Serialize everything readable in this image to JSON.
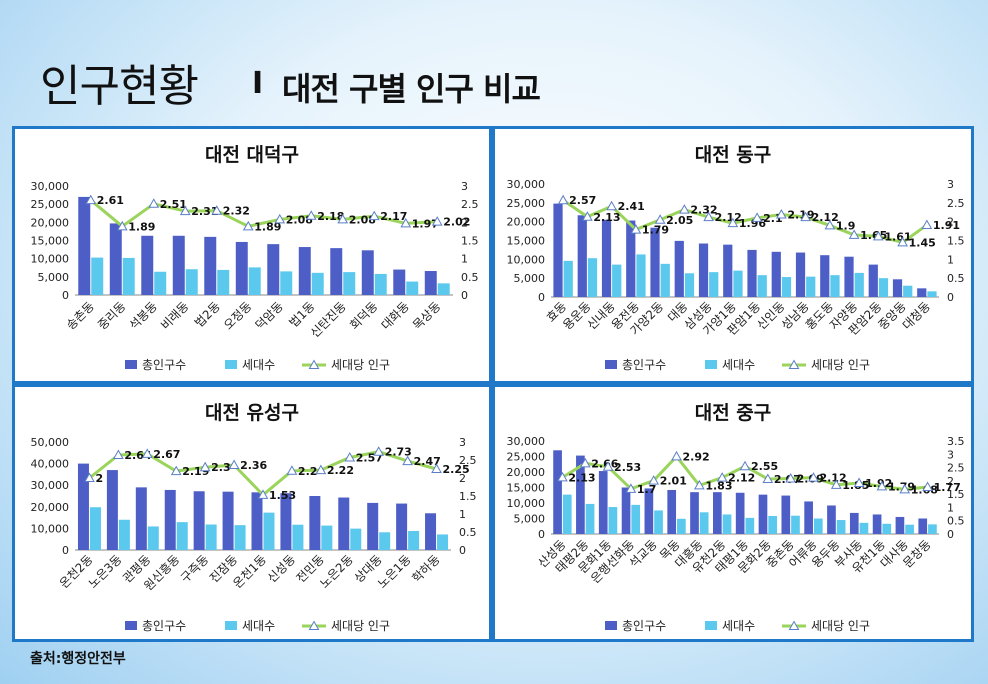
{
  "page": {
    "title": "인구현황",
    "separator": "I",
    "subtitle": "대전 구별 인구 비교",
    "source": "출처:행정안전부"
  },
  "colors": {
    "total": "#4d5ec7",
    "households": "#5bc8ee",
    "ratio_line": "#9ad45b",
    "ratio_marker": "#5b7fc8",
    "border": "#1f78c8"
  },
  "legend": {
    "total": "총인구수",
    "households": "세대수",
    "ratio": "세대당 인구"
  },
  "chart_data": [
    {
      "type": "bar",
      "title": "대전 대덕구",
      "categories": [
        "송촌동",
        "중리동",
        "석봉동",
        "비래동",
        "법2동",
        "오정동",
        "덕암동",
        "법1동",
        "신탄진동",
        "회덕동",
        "대화동",
        "목상동"
      ],
      "series": [
        {
          "name": "총인구수",
          "values": [
            27000,
            19700,
            16300,
            16300,
            16000,
            14600,
            14000,
            13200,
            12900,
            12300,
            7000,
            6600
          ]
        },
        {
          "name": "세대수",
          "values": [
            10300,
            10200,
            6400,
            7100,
            6900,
            7600,
            6500,
            6100,
            6300,
            5800,
            3700,
            3200
          ]
        },
        {
          "name": "세대당 인구",
          "axis": "right",
          "values": [
            2.61,
            1.89,
            2.51,
            2.31,
            2.32,
            1.89,
            2.08,
            2.18,
            2.08,
            2.17,
            1.97,
            2.02
          ]
        }
      ],
      "ylim": [
        0,
        30000
      ],
      "yticks": [
        "0",
        "5,000",
        "10,000",
        "15,000",
        "20,000",
        "25,000",
        "30,000"
      ],
      "y2lim": [
        0,
        3
      ],
      "y2ticks": [
        "0",
        "0.5",
        "1",
        "1.5",
        "2",
        "2.5",
        "3"
      ],
      "labels": [
        "2.61",
        "1.89",
        "2.51",
        "2.31",
        "2.32",
        "1.89",
        "2.08",
        "2.18",
        "2.08",
        "2.17",
        "1.97",
        "2.02"
      ]
    },
    {
      "type": "bar",
      "title": "대전 동구",
      "categories": [
        "효동",
        "용운동",
        "신내동",
        "용전동",
        "가양2동",
        "대동",
        "삼성동",
        "가양1동",
        "판암1동",
        "신인동",
        "성남동",
        "홍도동",
        "자양동",
        "판암2동",
        "중앙동",
        "대청동"
      ],
      "series": [
        {
          "name": "총인구수",
          "values": [
            24800,
            21700,
            20500,
            20300,
            18400,
            14900,
            14200,
            13900,
            12500,
            12000,
            11800,
            11100,
            10700,
            8600,
            4700,
            2300
          ]
        },
        {
          "name": "세대수",
          "values": [
            9600,
            10300,
            8600,
            11300,
            8800,
            6300,
            6600,
            7000,
            5800,
            5300,
            5400,
            5800,
            6400,
            5000,
            3000,
            1500
          ]
        },
        {
          "name": "세대당 인구",
          "axis": "right",
          "values": [
            2.57,
            2.13,
            2.41,
            1.79,
            2.05,
            2.32,
            2.12,
            1.96,
            2.1,
            2.19,
            2.12,
            1.9,
            1.65,
            1.61,
            1.45,
            1.91
          ]
        }
      ],
      "ylim": [
        0,
        30000
      ],
      "yticks": [
        "0",
        "5,000",
        "10,000",
        "15,000",
        "20,000",
        "25,000",
        "30,000"
      ],
      "y2lim": [
        0,
        3
      ],
      "y2ticks": [
        "0",
        "0.5",
        "1",
        "1.5",
        "2",
        "2.5",
        "3"
      ],
      "labels": [
        "2.57",
        "2.13",
        "2.41",
        "1.79",
        "2.05",
        "2.32",
        "2.12",
        "1.96",
        "2.1",
        "2.19",
        "2.12",
        "1.9",
        "1.65",
        "1.61",
        "1.45",
        "1.91"
      ]
    },
    {
      "type": "bar",
      "title": "대전 유성구",
      "categories": [
        "온천2동",
        "노은3동",
        "관평동",
        "원신흥동",
        "구즉동",
        "진잠동",
        "온천1동",
        "신성동",
        "전민동",
        "노은2동",
        "상대동",
        "노은1동",
        "학하동"
      ],
      "series": [
        {
          "name": "총인구수",
          "values": [
            40000,
            37000,
            29000,
            27800,
            27200,
            27000,
            26700,
            26300,
            25000,
            24300,
            21800,
            21500,
            17000
          ]
        },
        {
          "name": "세대수",
          "values": [
            19800,
            14000,
            10900,
            12900,
            11800,
            11500,
            17300,
            11700,
            11300,
            9900,
            8200,
            8800,
            7200
          ]
        },
        {
          "name": "세대당 인구",
          "axis": "right",
          "values": [
            2.0,
            2.64,
            2.67,
            2.19,
            2.3,
            2.36,
            1.53,
            2.2,
            2.22,
            2.57,
            2.73,
            2.47,
            2.25
          ]
        }
      ],
      "ylim": [
        0,
        50000
      ],
      "yticks": [
        "0",
        "10,000",
        "20,000",
        "30,000",
        "40,000",
        "50,000"
      ],
      "y2lim": [
        0,
        3
      ],
      "y2ticks": [
        "0",
        "0.5",
        "1",
        "1.5",
        "2",
        "2.5",
        "3"
      ],
      "labels": [
        "2",
        "2.64",
        "2.67",
        "2.19",
        "2.3",
        "2.36",
        "1.53",
        "2.2",
        "2.22",
        "2.57",
        "2.73",
        "2.47",
        "2.25"
      ]
    },
    {
      "type": "bar",
      "title": "대전 중구",
      "categories": [
        "산성동",
        "태평2동",
        "문화1동",
        "은행선화동",
        "석교동",
        "목동",
        "대흥동",
        "유천2동",
        "태평1동",
        "문화2동",
        "중촌동",
        "어류동",
        "용두동",
        "부사동",
        "유천1동",
        "대사동",
        "문창동"
      ],
      "series": [
        {
          "name": "총인구수",
          "values": [
            27000,
            25300,
            20300,
            15000,
            14700,
            14200,
            13500,
            13500,
            13300,
            12700,
            12400,
            10500,
            9200,
            6800,
            6300,
            5500,
            5000
          ]
        },
        {
          "name": "세대수",
          "values": [
            12700,
            9700,
            8700,
            9400,
            7600,
            4900,
            7000,
            6300,
            5200,
            5800,
            5900,
            5000,
            4500,
            3600,
            3300,
            3000,
            3100
          ]
        },
        {
          "name": "세대당 인구",
          "axis": "right",
          "values": [
            2.13,
            2.66,
            2.53,
            1.7,
            2.01,
            2.92,
            1.83,
            2.12,
            2.55,
            2.07,
            2.09,
            2.12,
            1.85,
            1.92,
            1.79,
            1.68,
            1.77
          ]
        }
      ],
      "ylim": [
        0,
        30000
      ],
      "yticks": [
        "0",
        "5,000",
        "10,000",
        "15,000",
        "20,000",
        "25,000",
        "30,000"
      ],
      "y2lim": [
        0,
        3.5
      ],
      "y2ticks": [
        "0",
        "0.5",
        "1",
        "1.5",
        "2",
        "2.5",
        "3",
        "3.5"
      ],
      "labels": [
        "2.13",
        "2.66",
        "2.53",
        "1.7",
        "2.01",
        "2.92",
        "1.83",
        "2.12",
        "2.55",
        "2.07",
        "2.09",
        "2.12",
        "1.85",
        "1.92",
        "1.79",
        "1.68",
        "1.77"
      ]
    }
  ]
}
